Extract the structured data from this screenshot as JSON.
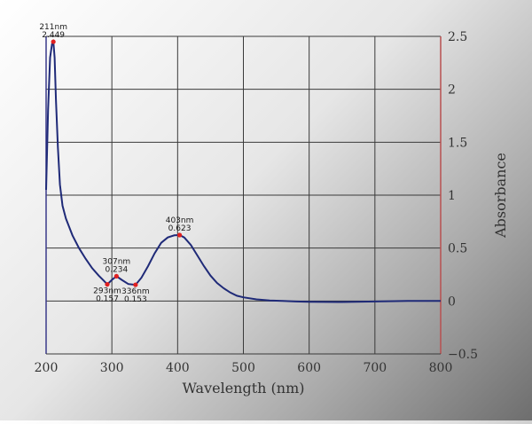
{
  "colors": {
    "curve": "#1f2a78",
    "grid": "#3a3a3a",
    "left_axis": "#3a3a8a",
    "right_axis": "#b85050",
    "peak_marker": "#e02020"
  },
  "chart_data": {
    "type": "line",
    "title": "",
    "xlabel": "Wavelength (nm)",
    "ylabel": "Absorbance",
    "xlim": [
      200,
      800
    ],
    "ylim": [
      -0.5,
      2.5
    ],
    "x_ticks": [
      "200",
      "300",
      "400",
      "500",
      "600",
      "700",
      "800"
    ],
    "y_ticks": [
      "2.5",
      "2",
      "1.5",
      "1",
      "0.5",
      "0",
      "−0.5"
    ],
    "x_tick_values": [
      200,
      300,
      400,
      500,
      600,
      700,
      800
    ],
    "y_tick_values": [
      2.5,
      2,
      1.5,
      1,
      0.5,
      0,
      -0.5
    ],
    "grid": true,
    "series": [
      {
        "x": [
          200,
          203,
          206,
          209,
          211,
          213,
          215,
          218,
          221,
          225,
          230,
          240,
          250,
          260,
          270,
          280,
          288,
          293,
          300,
          307,
          315,
          325,
          336,
          345,
          355,
          365,
          375,
          385,
          395,
          403,
          410,
          420,
          430,
          440,
          450,
          460,
          470,
          480,
          490,
          500,
          520,
          540,
          560,
          580,
          600,
          650,
          700,
          750,
          800
        ],
        "y": [
          1.05,
          1.8,
          2.3,
          2.43,
          2.449,
          2.3,
          1.9,
          1.45,
          1.1,
          0.9,
          0.78,
          0.62,
          0.5,
          0.4,
          0.31,
          0.24,
          0.19,
          0.157,
          0.2,
          0.234,
          0.2,
          0.16,
          0.153,
          0.22,
          0.33,
          0.45,
          0.55,
          0.6,
          0.62,
          0.623,
          0.6,
          0.53,
          0.43,
          0.33,
          0.24,
          0.17,
          0.12,
          0.08,
          0.05,
          0.035,
          0.015,
          0.005,
          0.0,
          -0.005,
          -0.008,
          -0.01,
          -0.005,
          0.0,
          0.0
        ]
      }
    ],
    "annotations": [
      {
        "x": 211,
        "y": 2.449,
        "line1": "211nm",
        "line2": "2.449",
        "pos": "above"
      },
      {
        "x": 307,
        "y": 0.234,
        "line1": "307nm",
        "line2": "0.234",
        "pos": "above"
      },
      {
        "x": 293,
        "y": 0.157,
        "line1": "293nm",
        "line2": "0.157",
        "pos": "below"
      },
      {
        "x": 336,
        "y": 0.153,
        "line1": "336nm",
        "line2": "0.153",
        "pos": "below"
      },
      {
        "x": 403,
        "y": 0.623,
        "line1": "403nm",
        "line2": "0.623",
        "pos": "above"
      }
    ]
  }
}
